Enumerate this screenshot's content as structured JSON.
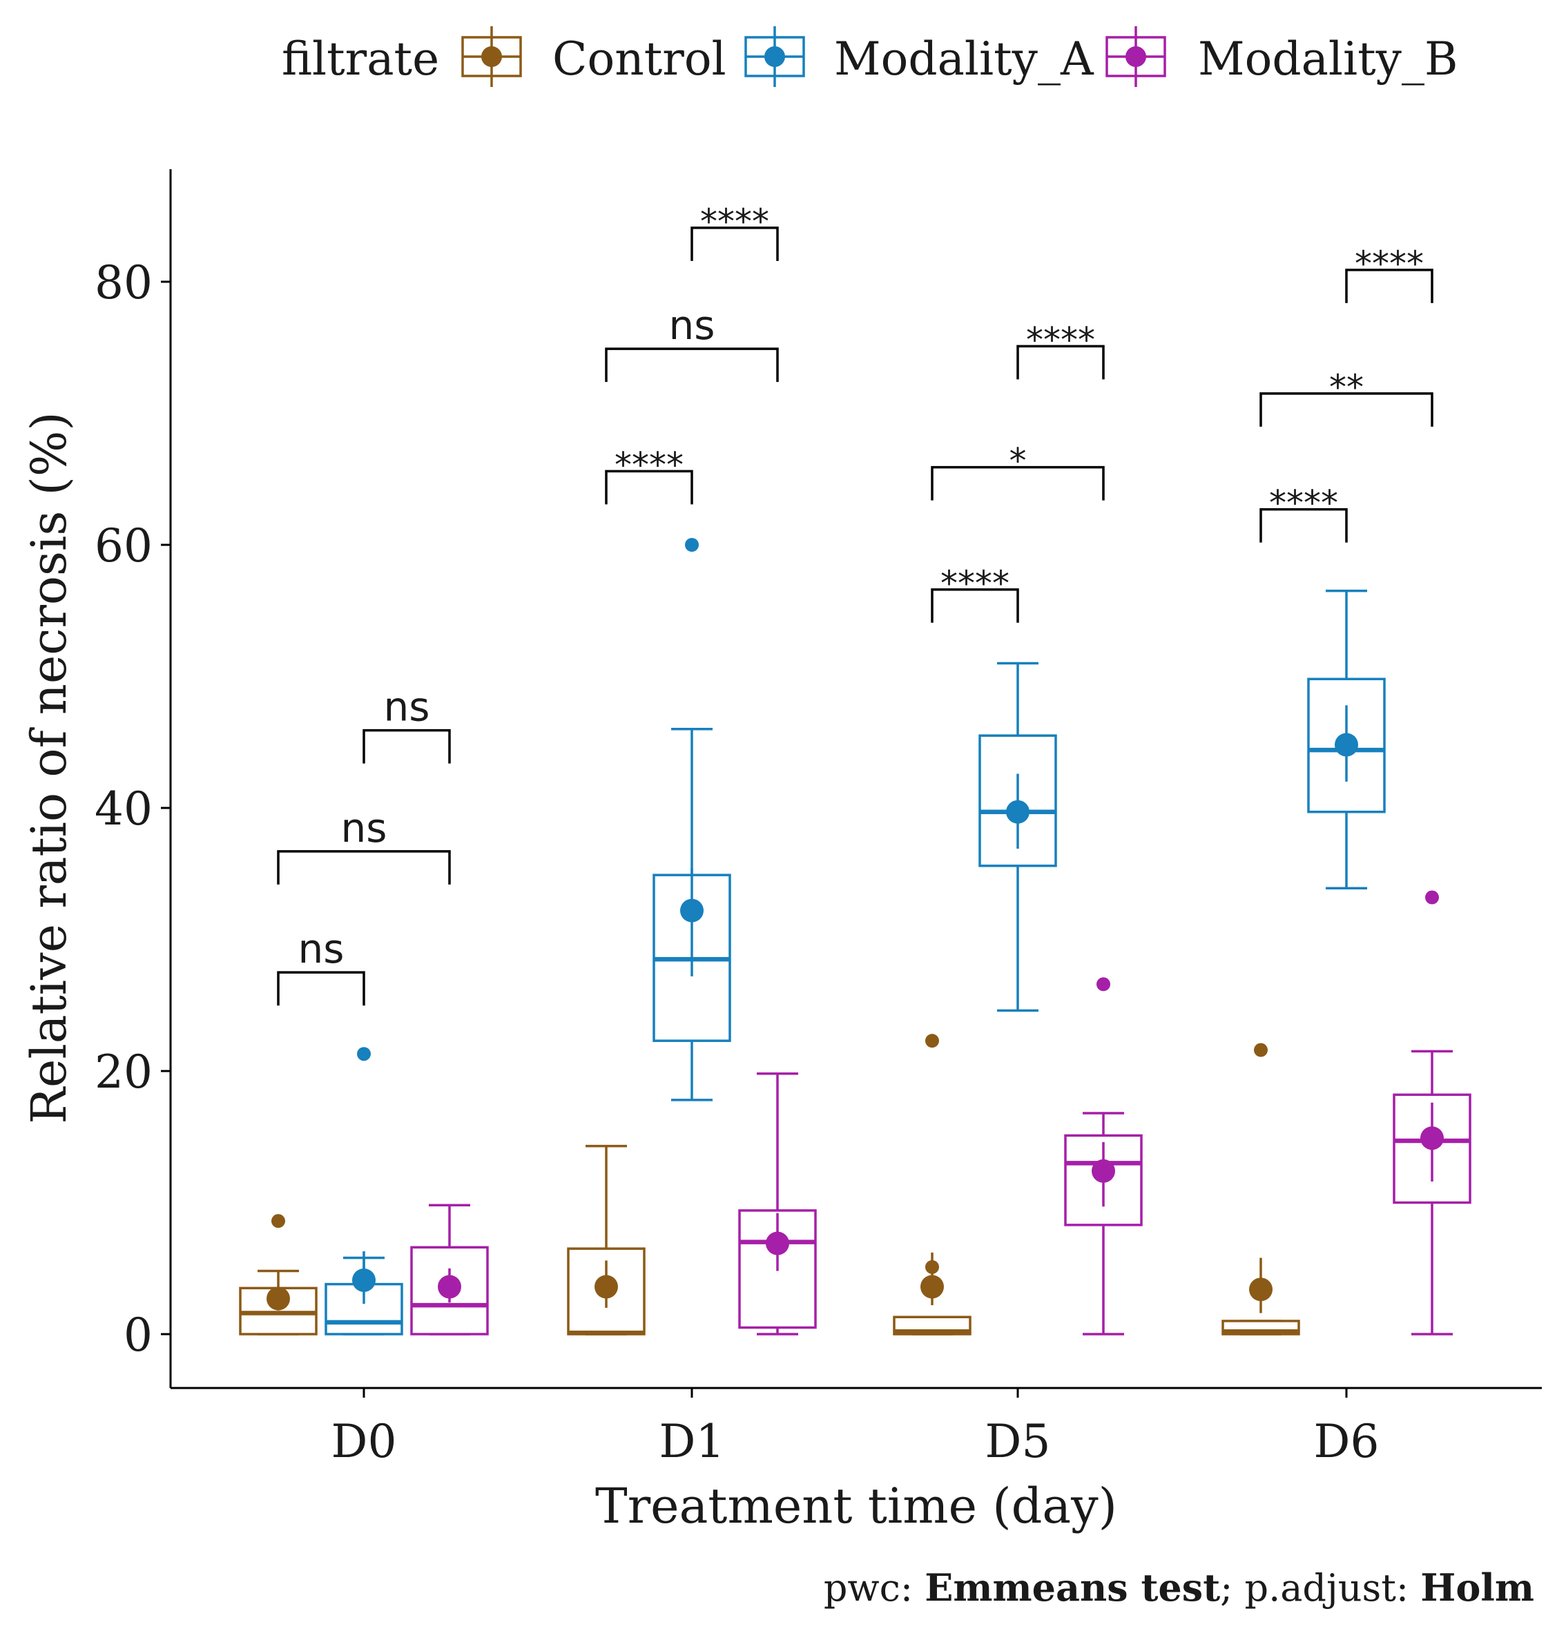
{
  "chart_data": {
    "type": "boxplot",
    "title": "",
    "xlabel": "Treatment time (day)",
    "ylabel": "Relative ratio of necrosis (%)",
    "ylim": [
      -4,
      89
    ],
    "y_ticks": [
      0,
      20,
      40,
      60,
      80
    ],
    "grid": false,
    "legend": {
      "title": "filtrate",
      "position": "top",
      "entries": [
        "Control",
        "Modality_A",
        "Modality_B"
      ]
    },
    "colors": {
      "Control": "#8B5A17",
      "Modality_A": "#1780BD",
      "Modality_B": "#A61FA8"
    },
    "categories": [
      "D0",
      "D1",
      "D5",
      "D6"
    ],
    "series": [
      {
        "name": "Control",
        "boxes": [
          {
            "category": "D0",
            "whisker_low": 0,
            "q1": 0,
            "median": 1.6,
            "q3": 3.5,
            "whisker_high": 4.8,
            "mean": 2.7,
            "mean_ci": [
              1.8,
              3.6
            ],
            "outliers": [
              8.6
            ]
          },
          {
            "category": "D1",
            "whisker_low": 0,
            "q1": 0,
            "median": 0.1,
            "q3": 6.5,
            "whisker_high": 14.3,
            "mean": 3.6,
            "mean_ci": [
              2.0,
              5.6
            ],
            "outliers": []
          },
          {
            "category": "D5",
            "whisker_low": 0,
            "q1": 0,
            "median": 0.2,
            "q3": 1.3,
            "whisker_high": 1.3,
            "mean": 3.6,
            "mean_ci": [
              2.2,
              6.2
            ],
            "outliers": [
              5.1,
              22.3
            ]
          },
          {
            "category": "D6",
            "whisker_low": 0,
            "q1": 0,
            "median": 0.2,
            "q3": 1.0,
            "whisker_high": 1.0,
            "mean": 3.4,
            "mean_ci": [
              1.6,
              5.8
            ],
            "outliers": [
              21.6
            ]
          }
        ]
      },
      {
        "name": "Modality_A",
        "boxes": [
          {
            "category": "D0",
            "whisker_low": 0,
            "q1": 0,
            "median": 0.9,
            "q3": 3.8,
            "whisker_high": 5.8,
            "mean": 4.1,
            "mean_ci": [
              2.3,
              6.3
            ],
            "outliers": [
              21.3
            ]
          },
          {
            "category": "D1",
            "whisker_low": 17.8,
            "q1": 22.3,
            "median": 28.5,
            "q3": 34.9,
            "whisker_high": 46.0,
            "mean": 32.2,
            "mean_ci": [
              27.2,
              35.4
            ],
            "outliers": [
              60.0
            ]
          },
          {
            "category": "D5",
            "whisker_low": 24.6,
            "q1": 35.6,
            "median": 39.7,
            "q3": 45.5,
            "whisker_high": 51.0,
            "mean": 39.7,
            "mean_ci": [
              36.9,
              42.6
            ],
            "outliers": []
          },
          {
            "category": "D6",
            "whisker_low": 33.9,
            "q1": 39.7,
            "median": 44.4,
            "q3": 49.8,
            "whisker_high": 56.5,
            "mean": 44.8,
            "mean_ci": [
              42.0,
              47.8
            ],
            "outliers": []
          }
        ]
      },
      {
        "name": "Modality_B",
        "boxes": [
          {
            "category": "D0",
            "whisker_low": 0,
            "q1": 0,
            "median": 2.2,
            "q3": 6.6,
            "whisker_high": 9.8,
            "mean": 3.6,
            "mean_ci": [
              2.4,
              5.0
            ],
            "outliers": []
          },
          {
            "category": "D1",
            "whisker_low": 0,
            "q1": 0.5,
            "median": 7.0,
            "q3": 9.4,
            "whisker_high": 19.8,
            "mean": 6.9,
            "mean_ci": [
              4.8,
              9.2
            ],
            "outliers": []
          },
          {
            "category": "D5",
            "whisker_low": 0,
            "q1": 8.3,
            "median": 13.0,
            "q3": 15.1,
            "whisker_high": 16.8,
            "mean": 12.4,
            "mean_ci": [
              9.7,
              14.6
            ],
            "outliers": [
              26.6
            ]
          },
          {
            "category": "D6",
            "whisker_low": 0,
            "q1": 10.0,
            "median": 14.7,
            "q3": 18.2,
            "whisker_high": 21.5,
            "mean": 14.9,
            "mean_ci": [
              11.6,
              17.6
            ],
            "outliers": [
              33.2
            ]
          }
        ]
      }
    ],
    "comparisons": [
      {
        "category": "D0",
        "groups": [
          "Control",
          "Modality_A"
        ],
        "y": 27.5,
        "label": "ns"
      },
      {
        "category": "D0",
        "groups": [
          "Control",
          "Modality_B"
        ],
        "y": 36.7,
        "label": "ns"
      },
      {
        "category": "D0",
        "groups": [
          "Modality_A",
          "Modality_B"
        ],
        "y": 45.9,
        "label": "ns"
      },
      {
        "category": "D1",
        "groups": [
          "Control",
          "Modality_A"
        ],
        "y": 65.6,
        "label": "****"
      },
      {
        "category": "D1",
        "groups": [
          "Control",
          "Modality_B"
        ],
        "y": 74.9,
        "label": "ns"
      },
      {
        "category": "D1",
        "groups": [
          "Modality_A",
          "Modality_B"
        ],
        "y": 84.1,
        "label": "****"
      },
      {
        "category": "D5",
        "groups": [
          "Control",
          "Modality_A"
        ],
        "y": 56.6,
        "label": "****"
      },
      {
        "category": "D5",
        "groups": [
          "Control",
          "Modality_B"
        ],
        "y": 65.9,
        "label": "*"
      },
      {
        "category": "D5",
        "groups": [
          "Modality_A",
          "Modality_B"
        ],
        "y": 75.1,
        "label": "****"
      },
      {
        "category": "D6",
        "groups": [
          "Control",
          "Modality_A"
        ],
        "y": 62.7,
        "label": "****"
      },
      {
        "category": "D6",
        "groups": [
          "Control",
          "Modality_B"
        ],
        "y": 71.5,
        "label": "**"
      },
      {
        "category": "D6",
        "groups": [
          "Modality_A",
          "Modality_B"
        ],
        "y": 80.9,
        "label": "****"
      }
    ],
    "caption_label": "pwc: ",
    "caption_method": "Emmeans test",
    "caption_sep": "; p.adjust: ",
    "caption_adjust": "Holm"
  }
}
